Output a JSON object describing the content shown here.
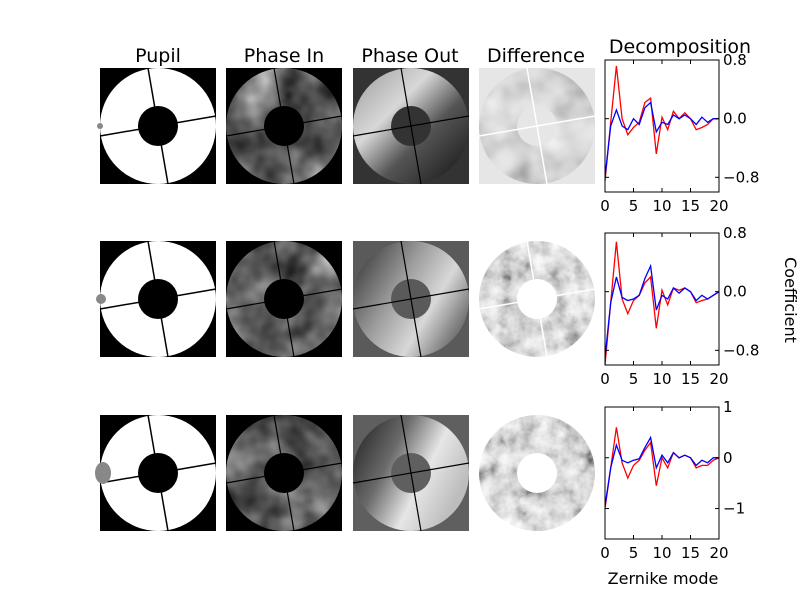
{
  "figure": {
    "column_titles": [
      "Pupil",
      "Phase In",
      "Phase Out",
      "Difference",
      "Decomposition"
    ],
    "ylabel": "Coefficient",
    "xlabel": "Zernike mode"
  },
  "chart_data": [
    {
      "type": "line",
      "title": "Decomposition",
      "xlabel": "",
      "ylabel": "Coefficient",
      "xlim": [
        0,
        20
      ],
      "ylim": [
        -1.0,
        0.8
      ],
      "xticks": [
        0,
        5,
        10,
        15,
        20
      ],
      "xtick_labels": [
        "0",
        "5",
        "10",
        "15",
        "20"
      ],
      "yticks": [
        0.8,
        0.0,
        -0.8
      ],
      "ytick_labels": [
        "0.8",
        "0.0",
        "−0.8"
      ],
      "x": [
        0,
        1,
        2,
        3,
        4,
        5,
        6,
        7,
        8,
        9,
        10,
        11,
        12,
        13,
        14,
        15,
        16,
        17,
        18,
        19,
        20
      ],
      "series": [
        {
          "name": "red",
          "color": "#ff0000",
          "values": [
            -0.85,
            -0.05,
            0.72,
            0.0,
            -0.22,
            -0.12,
            -0.05,
            0.22,
            0.28,
            -0.48,
            0.02,
            -0.15,
            0.1,
            0.0,
            0.08,
            0.0,
            -0.15,
            -0.12,
            -0.08,
            0.0,
            0.0
          ]
        },
        {
          "name": "blue",
          "color": "#0000ff",
          "values": [
            -0.8,
            -0.1,
            0.12,
            -0.1,
            -0.15,
            0.0,
            -0.08,
            0.15,
            0.22,
            -0.18,
            -0.05,
            -0.08,
            0.05,
            0.0,
            0.05,
            0.0,
            -0.08,
            0.02,
            -0.05,
            0.0,
            0.0
          ]
        }
      ]
    },
    {
      "type": "line",
      "title": "",
      "xlabel": "",
      "ylabel": "Coefficient",
      "xlim": [
        0,
        20
      ],
      "ylim": [
        -1.0,
        0.8
      ],
      "xticks": [
        0,
        5,
        10,
        15,
        20
      ],
      "xtick_labels": [
        "0",
        "5",
        "10",
        "15",
        "20"
      ],
      "yticks": [
        0.8,
        0.0,
        -0.8
      ],
      "ytick_labels": [
        "0.8",
        "0.0",
        "−0.8"
      ],
      "x": [
        0,
        1,
        2,
        3,
        4,
        5,
        6,
        7,
        8,
        9,
        10,
        11,
        12,
        13,
        14,
        15,
        16,
        17,
        18,
        19,
        20
      ],
      "series": [
        {
          "name": "red",
          "color": "#ff0000",
          "values": [
            -1.0,
            -0.15,
            0.68,
            -0.1,
            -0.3,
            -0.12,
            -0.05,
            0.12,
            0.2,
            -0.5,
            0.02,
            -0.18,
            0.05,
            0.02,
            0.05,
            0.0,
            -0.15,
            -0.12,
            -0.1,
            -0.05,
            0.0
          ]
        },
        {
          "name": "blue",
          "color": "#0000ff",
          "values": [
            -0.9,
            -0.15,
            0.2,
            -0.08,
            -0.12,
            -0.1,
            -0.05,
            0.18,
            0.35,
            -0.25,
            -0.05,
            -0.1,
            0.05,
            -0.02,
            0.05,
            0.0,
            -0.12,
            -0.05,
            -0.1,
            -0.05,
            0.0
          ]
        }
      ]
    },
    {
      "type": "line",
      "title": "",
      "xlabel": "Zernike mode",
      "ylabel": "Coefficient",
      "xlim": [
        0,
        20
      ],
      "ylim": [
        -1.6,
        1.0
      ],
      "xticks": [
        0,
        5,
        10,
        15,
        20
      ],
      "xtick_labels": [
        "0",
        "5",
        "10",
        "15",
        "20"
      ],
      "yticks": [
        1.0,
        0.0,
        -1.0
      ],
      "ytick_labels": [
        "1",
        "0",
        "−1"
      ],
      "x": [
        0,
        1,
        2,
        3,
        4,
        5,
        6,
        7,
        8,
        9,
        10,
        11,
        12,
        13,
        14,
        15,
        16,
        17,
        18,
        19,
        20
      ],
      "series": [
        {
          "name": "red",
          "color": "#ff0000",
          "values": [
            -1.0,
            -0.2,
            0.6,
            -0.1,
            -0.4,
            -0.15,
            -0.05,
            0.15,
            0.3,
            -0.55,
            0.0,
            -0.2,
            0.1,
            0.0,
            0.05,
            0.0,
            -0.2,
            -0.15,
            -0.15,
            -0.05,
            0.0
          ]
        },
        {
          "name": "blue",
          "color": "#0000ff",
          "values": [
            -0.95,
            -0.2,
            0.25,
            -0.05,
            -0.1,
            -0.05,
            -0.02,
            0.2,
            0.4,
            -0.2,
            0.05,
            -0.1,
            0.1,
            0.0,
            0.05,
            0.0,
            -0.15,
            -0.05,
            -0.1,
            0.0,
            0.0
          ]
        }
      ]
    }
  ]
}
